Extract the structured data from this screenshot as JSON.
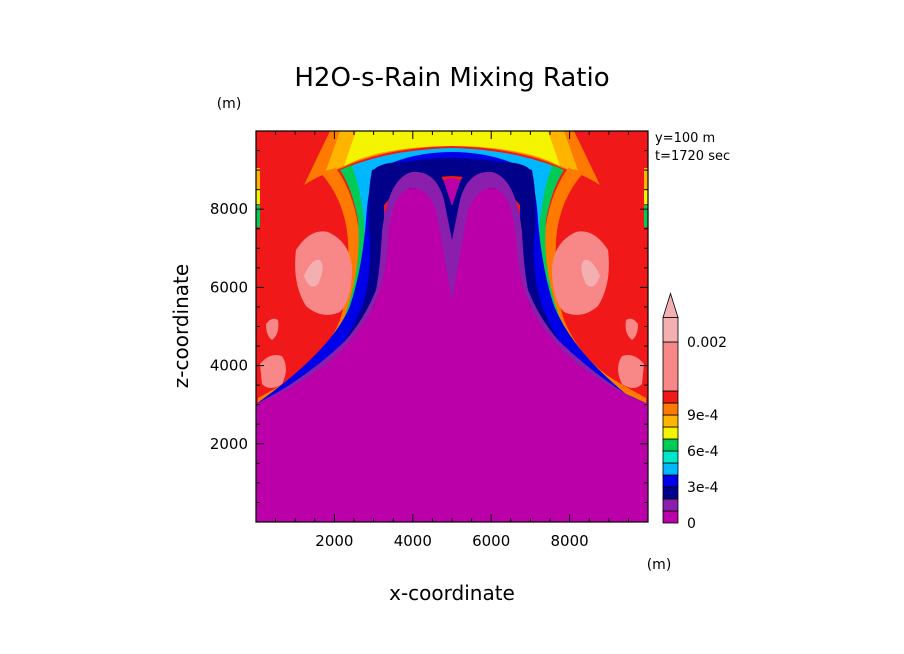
{
  "chart_data": {
    "type": "heatmap",
    "title": "H2O-s-Rain Mixing Ratio",
    "xlabel": "x-coordinate",
    "ylabel": "z-coordinate",
    "x_unit": "(m)",
    "y_unit": "(m)",
    "info": [
      "y=100 m",
      "t=1720 sec"
    ],
    "xlim": [
      0,
      10000
    ],
    "ylim": [
      0,
      10000
    ],
    "x_ticks": [
      2000,
      4000,
      6000,
      8000
    ],
    "y_ticks": [
      2000,
      4000,
      6000,
      8000
    ],
    "x_tick_labels": [
      "2000",
      "4000",
      "6000",
      "8000"
    ],
    "y_tick_labels": [
      "2000",
      "4000",
      "6000",
      "8000"
    ],
    "colorbar": {
      "levels": [
        0,
        0.0001,
        0.0002,
        0.0003,
        0.0004,
        0.0005,
        0.0006,
        0.0007,
        0.0008,
        0.0009,
        0.001,
        0.0015,
        0.002
      ],
      "labels": [
        {
          "value": 0,
          "text": "0"
        },
        {
          "value": 0.0003,
          "text": "3e-4"
        },
        {
          "value": 0.0006,
          "text": "6e-4"
        },
        {
          "value": 0.0009,
          "text": "9e-4"
        },
        {
          "value": 0.002,
          "text": "0.002"
        }
      ],
      "colors": [
        "#bb00aa",
        "#8a1fae",
        "#00008b",
        "#0000e8",
        "#00b8ff",
        "#00e8cc",
        "#00cc55",
        "#f4f400",
        "#ffb400",
        "#ff7a00",
        "#f01818",
        "#f88888",
        "#f4b0b0"
      ],
      "extend": "max"
    },
    "field_description": "Rain mixing ratio in an x-z cross-section: near-zero below the cloud base and in the central column, a high-value shell of about 1e-3 to 2e-3 around the outer region above about 3000 m."
  }
}
